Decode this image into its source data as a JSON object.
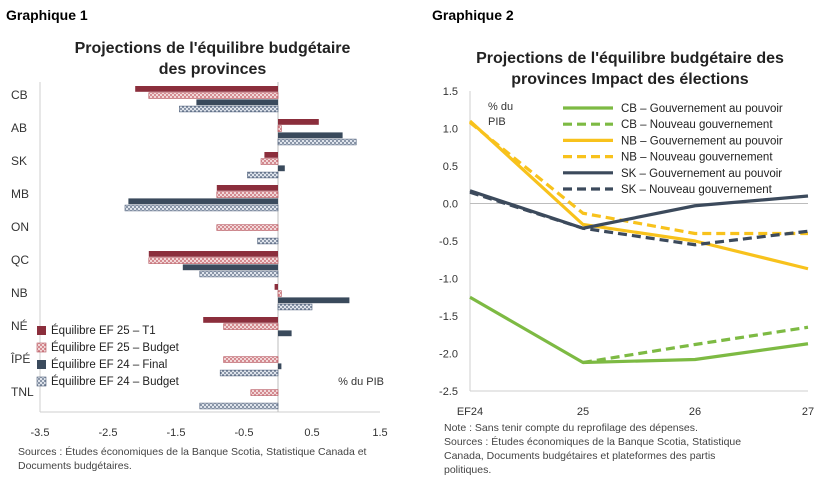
{
  "chart1": {
    "panel_label": "Graphique 1",
    "title_line1": "Projections de l'équilibre budgétaire",
    "title_line2": "des provinces",
    "unit_label": "% du PIB",
    "source": "Sources : Études économiques de la Banque Scotia, Statistique Canada et Documents budgétaires."
  },
  "chart2": {
    "panel_label": "Graphique 2",
    "title_line1": "Projections de l'équilibre budgétaire des",
    "title_line2": "provinces Impact des élections",
    "unit_label_line1": "% du",
    "unit_label_line2": "PIB",
    "note": "Note : Sans tenir compte du reprofilage des dépenses.",
    "source_line1": "Sources : Études économiques de la Banque Scotia, Statistique",
    "source_line2": "Canada, Documents budgétaires et plateformes des partis",
    "source_line3": "politiques."
  },
  "chart_data": [
    {
      "type": "bar",
      "orientation": "horizontal",
      "title": "Projections de l'équilibre budgétaire des provinces",
      "xlabel": "% du PIB",
      "xlim": [
        -3.5,
        1.5
      ],
      "xticks": [
        "-3.5",
        "-2.5",
        "-1.5",
        "-0.5",
        "0.5",
        "1.5"
      ],
      "categories": [
        "CB",
        "AB",
        "SK",
        "MB",
        "ON",
        "QC",
        "NB",
        "NÉ",
        "ÎPÉ",
        "TNL"
      ],
      "legend_position": "bottom-left",
      "series": [
        {
          "name": "Équilibre EF 25 – T1",
          "color": "#8b2e3c",
          "pattern": "solid",
          "values": [
            -2.1,
            0.6,
            -0.2,
            -0.9,
            null,
            -1.9,
            -0.05,
            -1.1,
            null,
            null
          ]
        },
        {
          "name": "Équilibre EF 25 – Budget",
          "color": "#c9696f",
          "pattern": "dots",
          "values": [
            -1.9,
            0.05,
            -0.25,
            -0.9,
            -0.9,
            -1.9,
            0.05,
            -0.8,
            -0.8,
            -0.4
          ]
        },
        {
          "name": "Équilibre EF 24 – Final",
          "color": "#3a4a5c",
          "pattern": "solid",
          "values": [
            -1.2,
            0.95,
            0.1,
            -2.2,
            null,
            -1.4,
            1.05,
            0.2,
            0.05,
            null
          ]
        },
        {
          "name": "Équilibre EF 24 – Budget",
          "color": "#5a6a82",
          "pattern": "dots",
          "values": [
            -1.45,
            1.15,
            -0.45,
            -2.25,
            -0.3,
            -1.15,
            0.5,
            null,
            -0.85,
            -1.15
          ]
        }
      ]
    },
    {
      "type": "line",
      "title": "Projections de l'équilibre budgétaire des provinces Impact des élections",
      "ylabel": "% du PIB",
      "x": [
        "EF24",
        "25",
        "26",
        "27"
      ],
      "ylim": [
        -2.5,
        1.5
      ],
      "yticks": [
        "1.5",
        "1.0",
        "0.5",
        "0.0",
        "-0.5",
        "-1.0",
        "-1.5",
        "-2.0",
        "-2.5"
      ],
      "legend_position": "top-right",
      "series": [
        {
          "name": "CB – Gouvernement au pouvoir",
          "color": "#7dba43",
          "dash": "solid",
          "values": [
            -1.25,
            -2.12,
            -2.08,
            -1.87
          ]
        },
        {
          "name": "CB – Nouveau gouvernement",
          "color": "#7dba43",
          "dash": "dashed",
          "values": [
            null,
            -2.12,
            -1.88,
            -1.65
          ]
        },
        {
          "name": "NB – Gouvernement au pouvoir",
          "color": "#f8c21c",
          "dash": "solid",
          "values": [
            1.1,
            -0.28,
            -0.5,
            -0.87
          ]
        },
        {
          "name": "NB – Nouveau gouvernement",
          "color": "#f8c21c",
          "dash": "dashed",
          "values": [
            1.08,
            -0.13,
            -0.4,
            -0.4
          ]
        },
        {
          "name": "SK – Gouvernement au pouvoir",
          "color": "#3c4a5c",
          "dash": "solid",
          "values": [
            0.17,
            -0.33,
            -0.03,
            0.1
          ]
        },
        {
          "name": "SK – Nouveau gouvernement",
          "color": "#3c4a5c",
          "dash": "dashed",
          "values": [
            0.15,
            -0.33,
            -0.55,
            -0.37
          ]
        }
      ]
    }
  ]
}
